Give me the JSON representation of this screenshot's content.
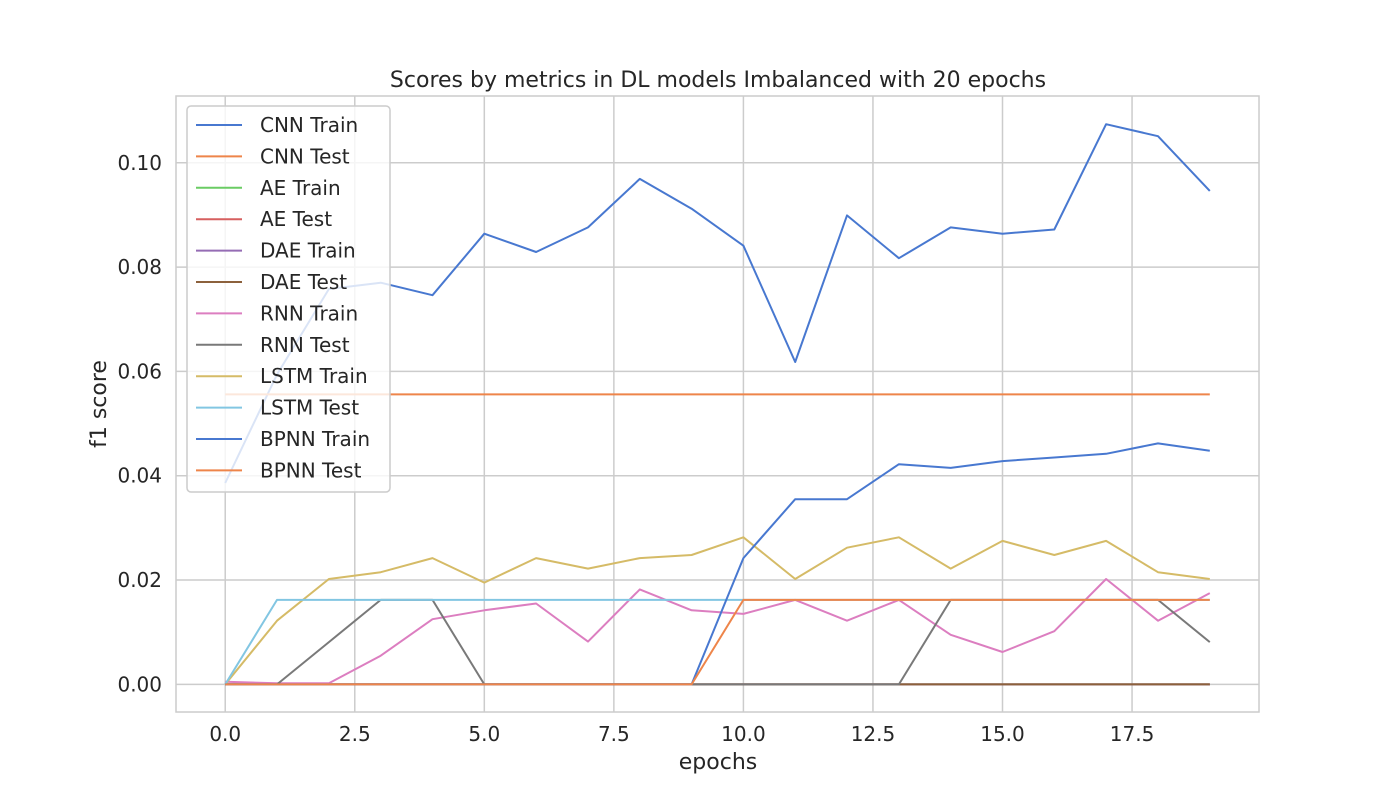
{
  "chart_data": {
    "type": "line",
    "title": "Scores by metrics in DL models Imbalanced with 20 epochs",
    "xlabel": "epochs",
    "ylabel": "f1 score",
    "xlim": [
      -0.95,
      19.95
    ],
    "ylim": [
      -0.0053,
      0.1128
    ],
    "x": [
      0,
      1,
      2,
      3,
      4,
      5,
      6,
      7,
      8,
      9,
      10,
      11,
      12,
      13,
      14,
      15,
      16,
      17,
      18,
      19
    ],
    "xticks": [
      0.0,
      2.5,
      5.0,
      7.5,
      10.0,
      12.5,
      15.0,
      17.5
    ],
    "xtick_labels": [
      "0.0",
      "2.5",
      "5.0",
      "7.5",
      "10.0",
      "12.5",
      "15.0",
      "17.5"
    ],
    "yticks": [
      0.0,
      0.02,
      0.04,
      0.06,
      0.08,
      0.1
    ],
    "ytick_labels": [
      "0.00",
      "0.02",
      "0.04",
      "0.06",
      "0.08",
      "0.10"
    ],
    "grid": true,
    "legend_position": "top-left",
    "series": [
      {
        "name": "CNN Train",
        "color": "#4878d0",
        "values": [
          0.0386,
          0.0594,
          0.0758,
          0.077,
          0.0746,
          0.0864,
          0.0829,
          0.0876,
          0.0969,
          0.0912,
          0.0841,
          0.0618,
          0.0899,
          0.0817,
          0.0876,
          0.0864,
          0.0872,
          0.1074,
          0.1051,
          0.0946
        ]
      },
      {
        "name": "CNN Test",
        "color": "#ee854a",
        "values": [
          0.0556,
          0.0556,
          0.0556,
          0.0556,
          0.0556,
          0.0556,
          0.0556,
          0.0556,
          0.0556,
          0.0556,
          0.0556,
          0.0556,
          0.0556,
          0.0556,
          0.0556,
          0.0556,
          0.0556,
          0.0556,
          0.0556,
          0.0556
        ]
      },
      {
        "name": "AE Train",
        "color": "#6acc64",
        "values": [
          0,
          0,
          0,
          0,
          0,
          0,
          0,
          0,
          0,
          0,
          0,
          0,
          0,
          0,
          0,
          0,
          0,
          0,
          0,
          0
        ]
      },
      {
        "name": "AE Test",
        "color": "#d65f5f",
        "values": [
          0,
          0,
          0,
          0,
          0,
          0,
          0,
          0,
          0,
          0,
          0,
          0,
          0,
          0,
          0,
          0,
          0,
          0,
          0,
          0
        ]
      },
      {
        "name": "DAE Train",
        "color": "#956cb4",
        "values": [
          0,
          0,
          0,
          0,
          0,
          0,
          0,
          0,
          0,
          0,
          0,
          0,
          0,
          0,
          0,
          0,
          0,
          0,
          0,
          0
        ]
      },
      {
        "name": "DAE Test",
        "color": "#8c613c",
        "values": [
          0,
          0,
          0,
          0,
          0,
          0,
          0,
          0,
          0,
          0,
          0,
          0,
          0,
          0,
          0,
          0,
          0,
          0,
          0,
          0
        ]
      },
      {
        "name": "RNN Train",
        "color": "#dc7ec0",
        "values": [
          0.0005,
          0.0002,
          0.0002,
          0.0055,
          0.0125,
          0.0142,
          0.0155,
          0.0082,
          0.0182,
          0.0142,
          0.0135,
          0.0162,
          0.0122,
          0.0162,
          0.0095,
          0.0062,
          0.0102,
          0.0202,
          0.0122,
          0.0175
        ]
      },
      {
        "name": "RNN Test",
        "color": "#797979",
        "values": [
          0,
          0,
          0.0081,
          0.0162,
          0.0162,
          0,
          0,
          0,
          0,
          0,
          0,
          0,
          0,
          0,
          0.0162,
          0.0162,
          0.0162,
          0.0162,
          0.0162,
          0.0081
        ]
      },
      {
        "name": "LSTM Train",
        "color": "#d5bb67",
        "values": [
          0,
          0.0122,
          0.0202,
          0.0215,
          0.0242,
          0.0195,
          0.0242,
          0.0222,
          0.0242,
          0.0248,
          0.0282,
          0.0202,
          0.0262,
          0.0282,
          0.0222,
          0.0275,
          0.0248,
          0.0275,
          0.0215,
          0.0202
        ]
      },
      {
        "name": "LSTM Test",
        "color": "#82c6e2",
        "values": [
          0,
          0.0162,
          0.0162,
          0.0162,
          0.0162,
          0.0162,
          0.0162,
          0.0162,
          0.0162,
          0.0162,
          0.0162,
          0.0162,
          0.0162,
          0.0162,
          0.0162,
          0.0162,
          0.0162,
          0.0162,
          0.0162,
          0.0162
        ]
      },
      {
        "name": "BPNN Train",
        "color": "#4878d0",
        "values": [
          0,
          0,
          0,
          0,
          0,
          0,
          0,
          0,
          0,
          0,
          0.0242,
          0.0355,
          0.0355,
          0.0422,
          0.0415,
          0.0428,
          0.0435,
          0.0442,
          0.0462,
          0.0448
        ]
      },
      {
        "name": "BPNN Test",
        "color": "#ee854a",
        "values": [
          0,
          0,
          0,
          0,
          0,
          0,
          0,
          0,
          0,
          0,
          0.0162,
          0.0162,
          0.0162,
          0.0162,
          0.0162,
          0.0162,
          0.0162,
          0.0162,
          0.0162,
          0.0162
        ]
      }
    ]
  }
}
